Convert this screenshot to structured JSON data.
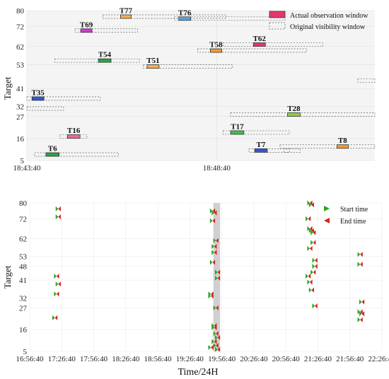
{
  "chart_data": [
    {
      "type": "bar",
      "ylabel": "Target",
      "xlim_seconds": [
        0,
        550
      ],
      "y_ticks": [
        "5",
        "16",
        "27",
        "32",
        "41",
        "53",
        "62",
        "72",
        "80"
      ],
      "x_ticks": [
        {
          "label": "18:43:40",
          "value": 0
        },
        {
          "label": "18:48:40",
          "value": 300
        }
      ],
      "legend": {
        "actual": "Actual observation window",
        "original": "Original visibility window",
        "placement": "top-right"
      },
      "tasks": [
        {
          "name": "T77",
          "target": 77,
          "win": [
            120,
            315
          ],
          "obs": [
            148,
            165
          ],
          "color": "#f5b14f"
        },
        {
          "name": "T76",
          "target": 76,
          "win": [
            233,
            408
          ],
          "obs": [
            240,
            259
          ],
          "color": "#5ba3df"
        },
        {
          "name": "T69",
          "target": 70,
          "win": [
            76,
            175
          ],
          "obs": [
            85,
            103
          ],
          "color": "#d23ad6"
        },
        {
          "name": "T62",
          "target": 63,
          "win": [
            310,
            468
          ],
          "obs": [
            358,
            377
          ],
          "color": "#e8366a"
        },
        {
          "name": "T58",
          "target": 60,
          "win": [
            270,
            442
          ],
          "obs": [
            290,
            308
          ],
          "color": "#f39b33"
        },
        {
          "name": "T54",
          "target": 55,
          "win": [
            44,
            178
          ],
          "obs": [
            113,
            133
          ],
          "color": "#2ea34a"
        },
        {
          "name": "T51",
          "target": 52,
          "win": [
            184,
            325
          ],
          "obs": [
            190,
            209
          ],
          "color": "#f5b14f"
        },
        {
          "name": "T35",
          "target": 36,
          "win": [
            0,
            116
          ],
          "obs": [
            8,
            27
          ],
          "color": "#2f58d6"
        },
        {
          "name": "T28",
          "target": 28,
          "win": [
            322,
            550
          ],
          "obs": [
            412,
            432
          ],
          "color": "#8bd23a"
        },
        {
          "name": "T17",
          "target": 19,
          "win": [
            310,
            415
          ],
          "obs": [
            322,
            343
          ],
          "color": "#42c24b"
        },
        {
          "name": "T16",
          "target": 17,
          "win": [
            52,
            95
          ],
          "obs": [
            64,
            84
          ],
          "color": "#f06a8c"
        },
        {
          "name": "T7",
          "target": 10,
          "win": [
            351,
            415
          ],
          "obs": [
            360,
            380
          ],
          "color": "#2f58d6"
        },
        {
          "name": "T8",
          "target": 12,
          "win": [
            400,
            550
          ],
          "obs": [
            490,
            508
          ],
          "color": "#f39b33"
        },
        {
          "name": "T6",
          "target": 8,
          "win": [
            12,
            145
          ],
          "obs": [
            30,
            51
          ],
          "color": "#2ea34a"
        }
      ],
      "extra_windows": [
        {
          "target": 31,
          "win": [
            0,
            58
          ]
        },
        {
          "target": 10,
          "win": [
            406,
            432
          ]
        },
        {
          "target": 45,
          "win": [
            523,
            550
          ]
        }
      ]
    },
    {
      "type": "scatter",
      "xlabel": "Time/24H",
      "ylabel": "Target",
      "xlim_min": [
        0,
        210
      ],
      "x_ticks": [
        "16:56:40",
        "17:26:40",
        "17:56:40",
        "18:26:40",
        "18:56:40",
        "19:26:40",
        "19:56:40",
        "20:26:40",
        "20:56:40",
        "21:26:40",
        "21:56:40",
        "22:26:40"
      ],
      "y_ticks": [
        "5",
        "16",
        "27",
        "32",
        "41",
        "48",
        "53",
        "62",
        "72",
        "80"
      ],
      "legend": {
        "start": "Start time",
        "end": "End time",
        "placement": "top-right"
      },
      "highlight_band_min": [
        109.5,
        113.5
      ],
      "series": [
        {
          "name": "Start time",
          "marker": "triangle-right",
          "color": "#2da51f"
        },
        {
          "name": "End time",
          "marker": "triangle-left",
          "color": "#d62020"
        }
      ],
      "points_min_target": [
        [
          17,
          77
        ],
        [
          17,
          73
        ],
        [
          16,
          43
        ],
        [
          17,
          39
        ],
        [
          16,
          34
        ],
        [
          15,
          22
        ],
        [
          109,
          76
        ],
        [
          110,
          75
        ],
        [
          109,
          71
        ],
        [
          111,
          61
        ],
        [
          110,
          58
        ],
        [
          110,
          55
        ],
        [
          109,
          50
        ],
        [
          112,
          45
        ],
        [
          112,
          42
        ],
        [
          108,
          34
        ],
        [
          108,
          33
        ],
        [
          111,
          27
        ],
        [
          110,
          18
        ],
        [
          110,
          17
        ],
        [
          111,
          14
        ],
        [
          112,
          12
        ],
        [
          110,
          10
        ],
        [
          111,
          8
        ],
        [
          112,
          6
        ],
        [
          108,
          7
        ],
        [
          167,
          80
        ],
        [
          168,
          79
        ],
        [
          166,
          72
        ],
        [
          167,
          67
        ],
        [
          168,
          66
        ],
        [
          169,
          65
        ],
        [
          169,
          60
        ],
        [
          167,
          57
        ],
        [
          170,
          51
        ],
        [
          170,
          48
        ],
        [
          169,
          45
        ],
        [
          166,
          43
        ],
        [
          167,
          40
        ],
        [
          168,
          36
        ],
        [
          170,
          28
        ],
        [
          197,
          54
        ],
        [
          197,
          49
        ],
        [
          198,
          30
        ],
        [
          197,
          25
        ],
        [
          198,
          24
        ],
        [
          197,
          21
        ]
      ]
    }
  ]
}
